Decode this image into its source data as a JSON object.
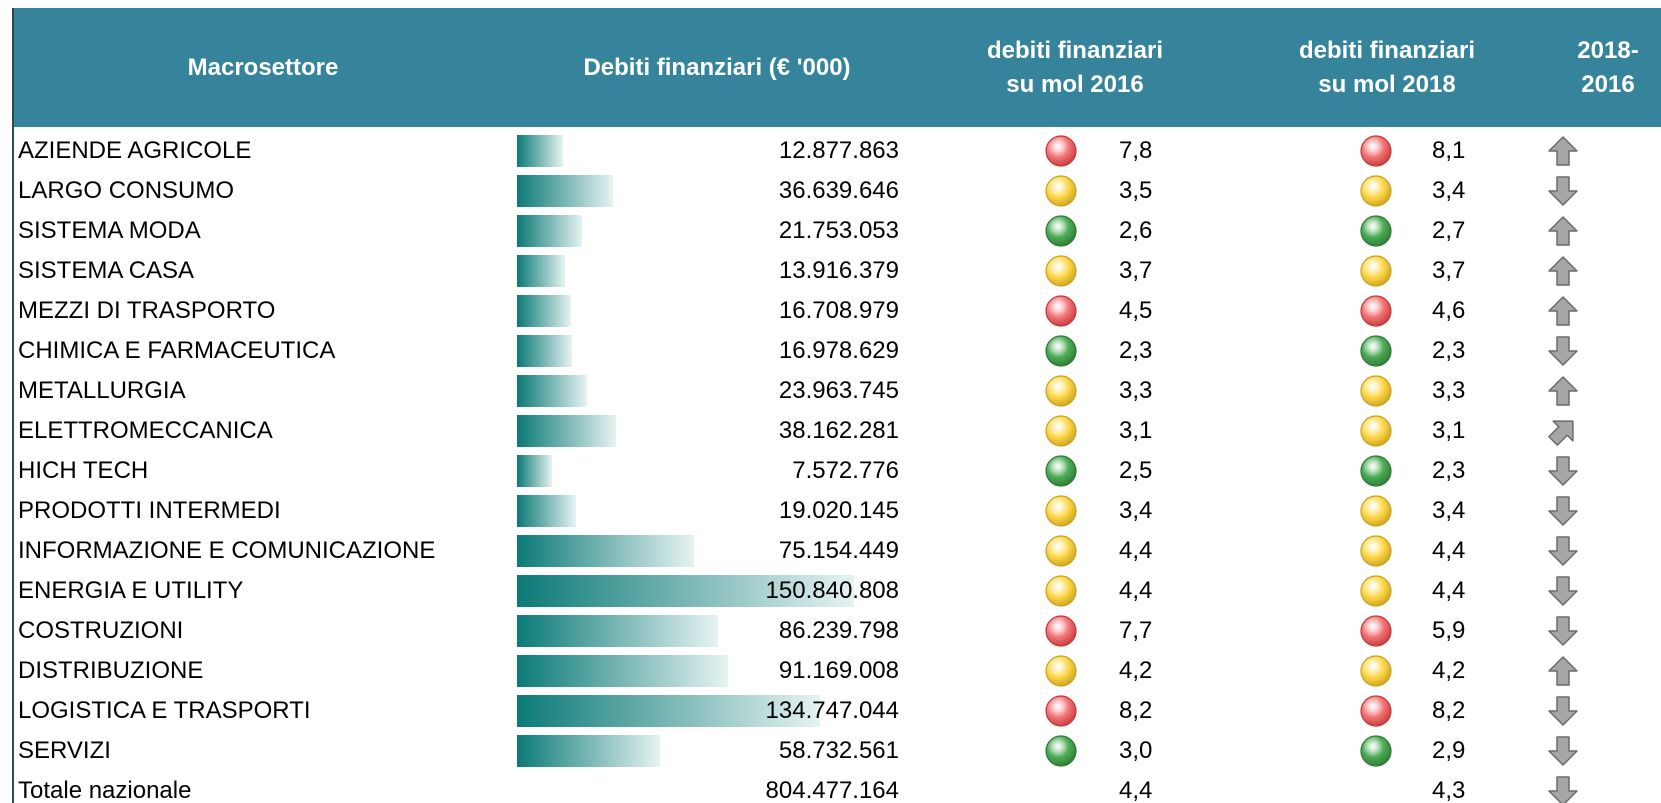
{
  "header": {
    "columns": [
      "Macrosettore",
      "Debiti finanziari (€ '000)",
      "debiti finanziari su mol 2016",
      "debiti finanziari su mol 2018",
      "2018-2016"
    ]
  },
  "table": {
    "rows": [
      {
        "name": "AZIENDE AGRICOLE",
        "value": "12.877.863",
        "mol2016": "7,8",
        "status2016": "red",
        "mol2018": "8,1",
        "status2018": "red",
        "trend": "up"
      },
      {
        "name": "LARGO CONSUMO",
        "value": "36.639.646",
        "mol2016": "3,5",
        "status2016": "yellow",
        "mol2018": "3,4",
        "status2018": "yellow",
        "trend": "down"
      },
      {
        "name": "SISTEMA MODA",
        "value": "21.753.053",
        "mol2016": "2,6",
        "status2016": "green",
        "mol2018": "2,7",
        "status2018": "green",
        "trend": "up"
      },
      {
        "name": "SISTEMA CASA",
        "value": "13.916.379",
        "mol2016": "3,7",
        "status2016": "yellow",
        "mol2018": "3,7",
        "status2018": "yellow",
        "trend": "up"
      },
      {
        "name": "MEZZI DI TRASPORTO",
        "value": "16.708.979",
        "mol2016": "4,5",
        "status2016": "red",
        "mol2018": "4,6",
        "status2018": "red",
        "trend": "up"
      },
      {
        "name": "CHIMICA E FARMACEUTICA",
        "value": "16.978.629",
        "mol2016": "2,3",
        "status2016": "green",
        "mol2018": "2,3",
        "status2018": "green",
        "trend": "down"
      },
      {
        "name": "METALLURGIA",
        "value": "23.963.745",
        "mol2016": "3,3",
        "status2016": "yellow",
        "mol2018": "3,3",
        "status2018": "yellow",
        "trend": "up"
      },
      {
        "name": "ELETTROMECCANICA",
        "value": "38.162.281",
        "mol2016": "3,1",
        "status2016": "yellow",
        "mol2018": "3,1",
        "status2018": "yellow",
        "trend": "up-right"
      },
      {
        "name": "HICH TECH",
        "value": "7.572.776",
        "mol2016": "2,5",
        "status2016": "green",
        "mol2018": "2,3",
        "status2018": "green",
        "trend": "down"
      },
      {
        "name": "PRODOTTI INTERMEDI",
        "value": "19.020.145",
        "mol2016": "3,4",
        "status2016": "yellow",
        "mol2018": "3,4",
        "status2018": "yellow",
        "trend": "down"
      },
      {
        "name": "INFORMAZIONE E COMUNICAZIONE",
        "value": "75.154.449",
        "mol2016": "4,4",
        "status2016": "yellow",
        "mol2018": "4,4",
        "status2018": "yellow",
        "trend": "down"
      },
      {
        "name": "ENERGIA E UTILITY",
        "value": "150.840.808",
        "mol2016": "4,4",
        "status2016": "yellow",
        "mol2018": "4,4",
        "status2018": "yellow",
        "trend": "down"
      },
      {
        "name": "COSTRUZIONI",
        "value": "86.239.798",
        "mol2016": "7,7",
        "status2016": "red",
        "mol2018": "5,9",
        "status2018": "red",
        "trend": "down"
      },
      {
        "name": "DISTRIBUZIONE",
        "value": "91.169.008",
        "mol2016": "4,2",
        "status2016": "yellow",
        "mol2018": "4,2",
        "status2018": "yellow",
        "trend": "up"
      },
      {
        "name": "LOGISTICA E TRASPORTI",
        "value": "134.747.044",
        "mol2016": "8,2",
        "status2016": "red",
        "mol2018": "8,2",
        "status2018": "red",
        "trend": "down"
      },
      {
        "name": "SERVIZI",
        "value": "58.732.561",
        "mol2016": "3,0",
        "status2016": "green",
        "mol2018": "2,9",
        "status2018": "green",
        "trend": "down"
      },
      {
        "name": "Totale nazionale",
        "value": "804.477.164",
        "mol2016": "4,4",
        "mol2018": "4,3",
        "trend": "down"
      }
    ]
  }
}
